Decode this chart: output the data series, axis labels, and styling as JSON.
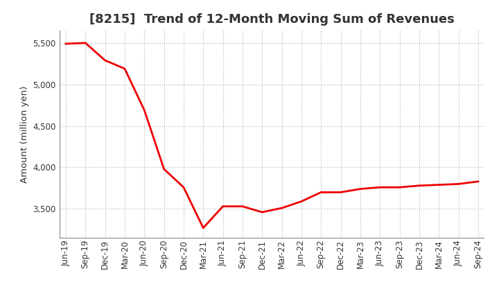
{
  "title": "[8215]  Trend of 12-Month Moving Sum of Revenues",
  "ylabel": "Amount (million yen)",
  "line_color": "#EE0000",
  "background_color": "#FFFFFF",
  "grid_color": "#AAAAAA",
  "title_color": "#333333",
  "x_labels": [
    "Jun-19",
    "Sep-19",
    "Dec-19",
    "Mar-20",
    "Jun-20",
    "Sep-20",
    "Dec-20",
    "Mar-21",
    "Jun-21",
    "Sep-21",
    "Dec-21",
    "Mar-22",
    "Jun-22",
    "Sep-22",
    "Dec-22",
    "Mar-23",
    "Jun-23",
    "Sep-23",
    "Dec-23",
    "Mar-24",
    "Jun-24",
    "Sep-24"
  ],
  "values": [
    5490,
    5500,
    5290,
    5190,
    4690,
    3980,
    3760,
    3270,
    3530,
    3530,
    3460,
    3510,
    3590,
    3700,
    3700,
    3740,
    3760,
    3760,
    3780,
    3790,
    3800,
    3830
  ],
  "ylim_min": 3150,
  "ylim_max": 5650,
  "yticks": [
    3500,
    4000,
    4500,
    5000,
    5500
  ],
  "title_fontsize": 13,
  "tick_fontsize": 8.5,
  "ylabel_fontsize": 9.5,
  "line_width": 2.0
}
